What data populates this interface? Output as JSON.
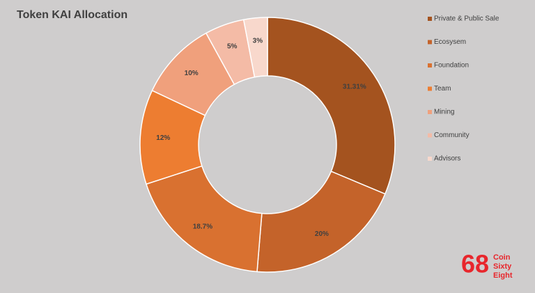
{
  "chart_data": {
    "type": "doughnut",
    "title": "Token KAI Allocation",
    "categories": [
      "Private & Public Sale",
      "Ecosysem",
      "Foundation",
      "Team",
      "Mining",
      "Community",
      "Advisors"
    ],
    "values": [
      31.31,
      20,
      18.7,
      12,
      10,
      5,
      3
    ],
    "value_labels": [
      "31.31%",
      "20%",
      "18.7%",
      "12%",
      "10%",
      "5%",
      "3%"
    ],
    "colors": [
      "#a4531f",
      "#c4632a",
      "#d97130",
      "#ed7d31",
      "#f0a07c",
      "#f4bba6",
      "#f8d8cc"
    ],
    "legend": "right"
  },
  "logo": {
    "mark": "68",
    "lines": [
      "Coin",
      "Sixty",
      "Eight"
    ]
  }
}
